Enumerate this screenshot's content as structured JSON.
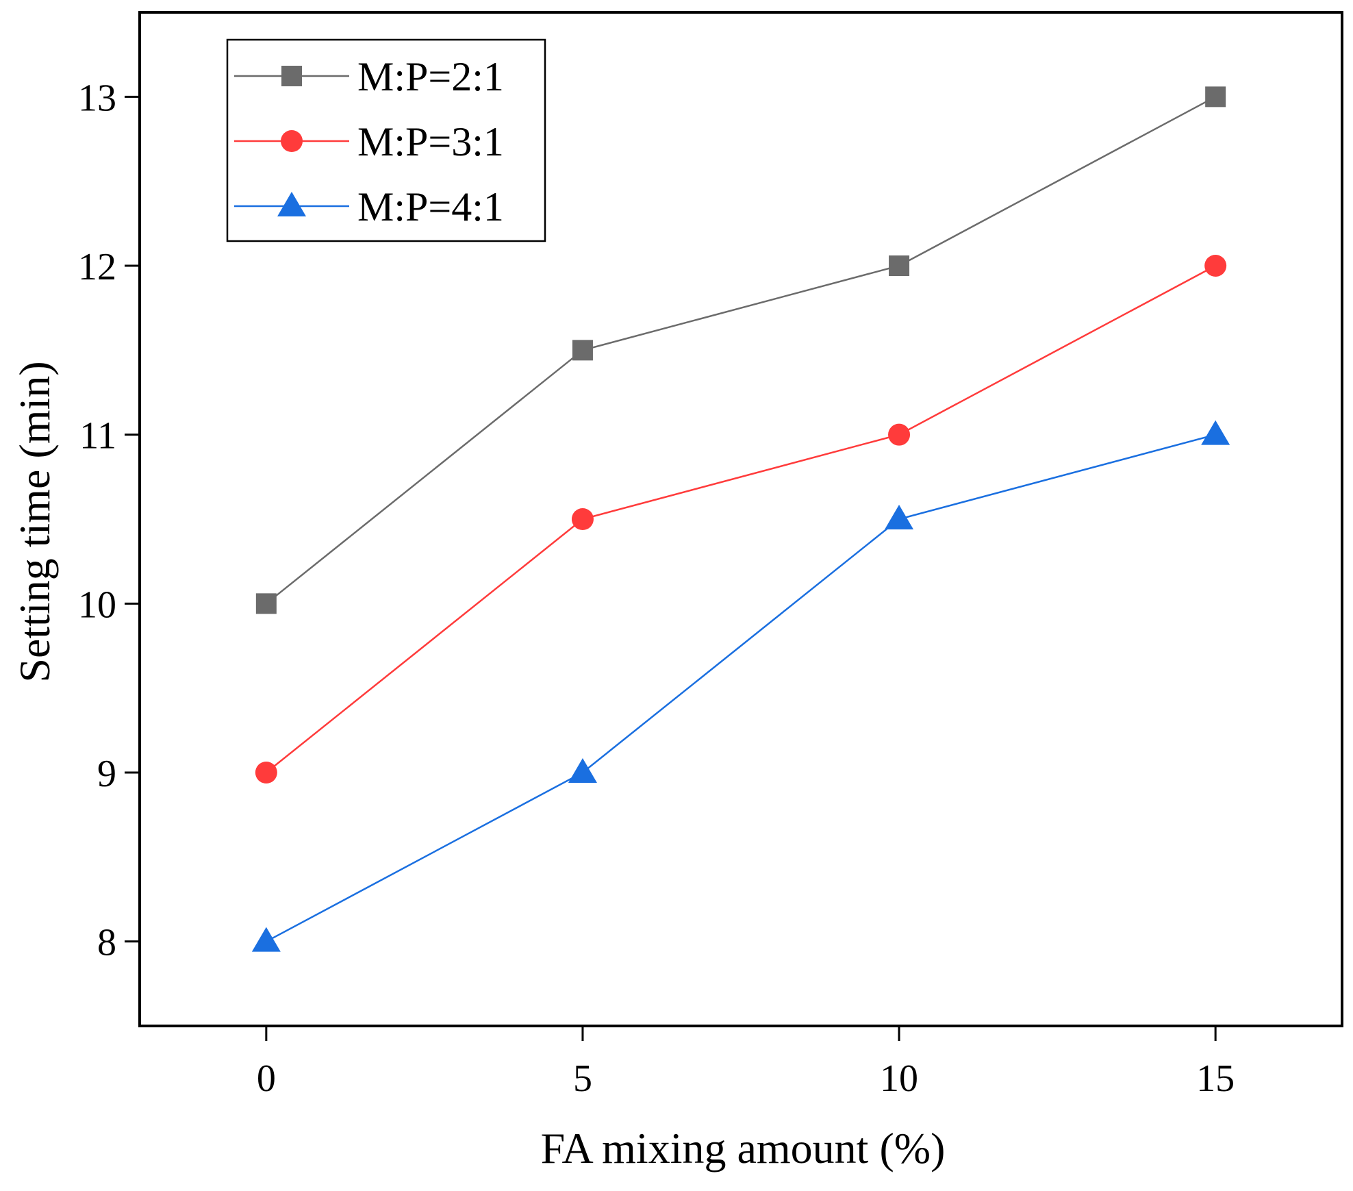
{
  "chart_data": {
    "type": "line",
    "title": "",
    "xlabel": "FA mixing amount (%)",
    "ylabel": "Setting time (min)",
    "x": [
      0,
      5,
      10,
      15
    ],
    "x_tick_labels": [
      "0",
      "5",
      "10",
      "15"
    ],
    "y_ticks": [
      8,
      9,
      10,
      11,
      12,
      13
    ],
    "y_tick_labels": [
      "8",
      "9",
      "10",
      "11",
      "12",
      "13"
    ],
    "xlim": [
      -2,
      17
    ],
    "ylim": [
      7.5,
      13.5
    ],
    "grid": false,
    "legend_position": "top-left",
    "series": [
      {
        "name": "M:P=2:1",
        "values": [
          10,
          11.5,
          12,
          13
        ],
        "color": "#6b6b6b",
        "marker": "square"
      },
      {
        "name": "M:P=3:1",
        "values": [
          9,
          10.5,
          11,
          12
        ],
        "color": "#ff3b3b",
        "marker": "circle"
      },
      {
        "name": "M:P=4:1",
        "values": [
          8,
          9,
          10.5,
          11
        ],
        "color": "#1a6fe0",
        "marker": "triangle"
      }
    ]
  }
}
